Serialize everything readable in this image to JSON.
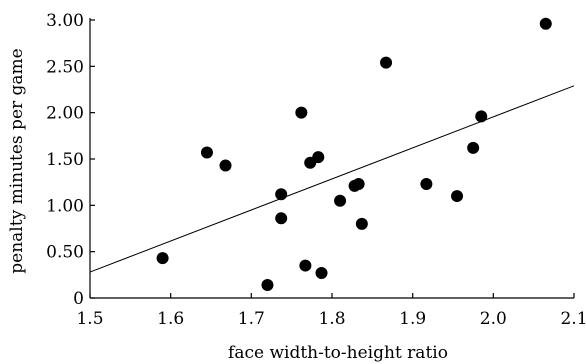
{
  "chart_data": {
    "type": "scatter",
    "xlabel": "face width-to-height ratio",
    "ylabel": "penalty minutes per game",
    "xlim": [
      1.5,
      2.1
    ],
    "ylim": [
      0,
      3.0
    ],
    "x_ticks": [
      "1.5",
      "1.6",
      "1.7",
      "1.8",
      "1.9",
      "2.0",
      "2.1"
    ],
    "y_ticks": [
      "0",
      "0.50",
      "1.00",
      "1.50",
      "2.00",
      "2.50",
      "3.00"
    ],
    "grid": false,
    "points": [
      {
        "x": 1.59,
        "y": 0.43
      },
      {
        "x": 1.645,
        "y": 1.57
      },
      {
        "x": 1.668,
        "y": 1.43
      },
      {
        "x": 1.72,
        "y": 0.14
      },
      {
        "x": 1.737,
        "y": 1.12
      },
      {
        "x": 1.737,
        "y": 0.86
      },
      {
        "x": 1.762,
        "y": 2.0
      },
      {
        "x": 1.767,
        "y": 0.35
      },
      {
        "x": 1.773,
        "y": 1.46
      },
      {
        "x": 1.783,
        "y": 1.52
      },
      {
        "x": 1.787,
        "y": 0.27
      },
      {
        "x": 1.81,
        "y": 1.05
      },
      {
        "x": 1.828,
        "y": 1.21
      },
      {
        "x": 1.833,
        "y": 1.23
      },
      {
        "x": 1.837,
        "y": 0.8
      },
      {
        "x": 1.867,
        "y": 2.54
      },
      {
        "x": 1.917,
        "y": 1.23
      },
      {
        "x": 1.955,
        "y": 1.1
      },
      {
        "x": 1.975,
        "y": 1.62
      },
      {
        "x": 1.985,
        "y": 1.96
      },
      {
        "x": 2.065,
        "y": 2.96
      }
    ],
    "trendline": {
      "x": [
        1.5,
        2.1
      ],
      "y": [
        0.28,
        2.29
      ]
    }
  }
}
